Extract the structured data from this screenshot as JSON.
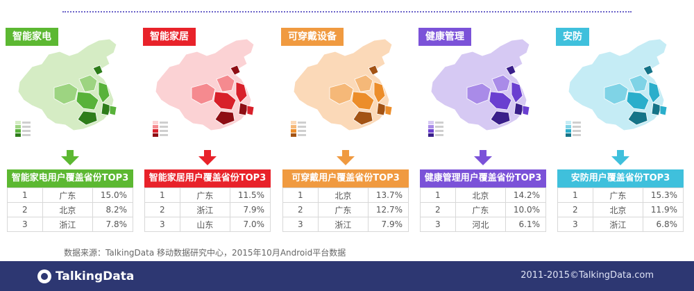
{
  "panels": [
    {
      "header": "智能家电",
      "table_title": "智能家电用户覆盖省份TOP3",
      "color": "#5cb832",
      "map_colors": [
        "#d5ecc4",
        "#9dd481",
        "#58b23a",
        "#2e7d1a"
      ],
      "rows": [
        {
          "rank": "1",
          "province": "广东",
          "pct": "15.0%"
        },
        {
          "rank": "2",
          "province": "北京",
          "pct": "8.2%"
        },
        {
          "rank": "3",
          "province": "浙江",
          "pct": "7.8%"
        }
      ]
    },
    {
      "header": "智能家居",
      "table_title": "智能家居用户覆盖省份TOP3",
      "color": "#e8222a",
      "map_colors": [
        "#fbd2d4",
        "#f58a8f",
        "#d8202a",
        "#8e0e14"
      ],
      "rows": [
        {
          "rank": "1",
          "province": "广东",
          "pct": "11.5%"
        },
        {
          "rank": "2",
          "province": "浙江",
          "pct": "7.9%"
        },
        {
          "rank": "3",
          "province": "山东",
          "pct": "7.0%"
        }
      ]
    },
    {
      "header": "可穿戴设备",
      "table_title": "可穿戴用户覆盖省份TOP3",
      "color": "#f09a40",
      "map_colors": [
        "#fbd9b8",
        "#f5b878",
        "#ec8d2a",
        "#a35314"
      ],
      "rows": [
        {
          "rank": "1",
          "province": "北京",
          "pct": "13.7%"
        },
        {
          "rank": "2",
          "province": "广东",
          "pct": "12.7%"
        },
        {
          "rank": "3",
          "province": "浙江",
          "pct": "7.9%"
        }
      ]
    },
    {
      "header": "健康管理",
      "table_title": "健康管理用户覆盖省份TOP3",
      "color": "#7b52d8",
      "map_colors": [
        "#d6c9f3",
        "#a98be8",
        "#6a3fd0",
        "#3a1f8a"
      ],
      "rows": [
        {
          "rank": "1",
          "province": "北京",
          "pct": "14.2%"
        },
        {
          "rank": "2",
          "province": "广东",
          "pct": "10.0%"
        },
        {
          "rank": "3",
          "province": "河北",
          "pct": "6.1%"
        }
      ]
    },
    {
      "header": "安防",
      "table_title": "安防用户覆盖省份TOP3",
      "color": "#3fc0dc",
      "map_colors": [
        "#c5ecf5",
        "#7fd3e6",
        "#2aaecb",
        "#157488"
      ],
      "rows": [
        {
          "rank": "1",
          "province": "广东",
          "pct": "15.3%"
        },
        {
          "rank": "2",
          "province": "北京",
          "pct": "11.9%"
        },
        {
          "rank": "3",
          "province": "浙江",
          "pct": "6.8%"
        }
      ]
    }
  ],
  "source_note": "数据来源：TalkingData 移动数据研究中心，2015年10月Android平台数据",
  "footer": {
    "logo_text": "TalkingData",
    "copyright": "2011-2015©TalkingData.com",
    "background": "#2d3772"
  }
}
